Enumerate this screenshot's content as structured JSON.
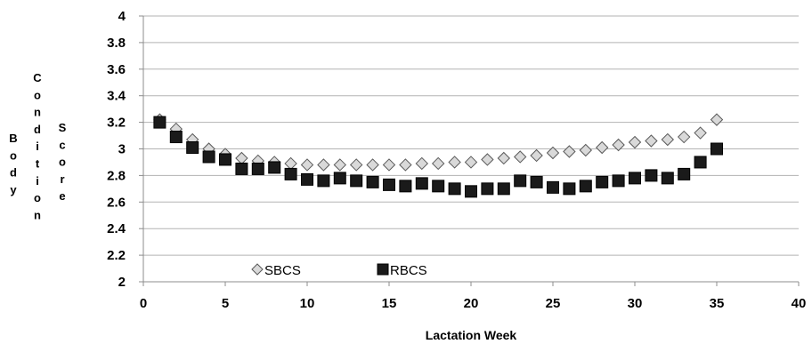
{
  "chart_data": {
    "type": "scatter",
    "xlabel": "Lactation Week",
    "ylabel_words": [
      "Body",
      "Condition",
      "Score"
    ],
    "xlim": [
      0,
      40
    ],
    "ylim": [
      2,
      4
    ],
    "xticks": [
      "0",
      "5",
      "10",
      "15",
      "20",
      "25",
      "30",
      "35",
      "40"
    ],
    "yticks": [
      "2",
      "2.2",
      "2.4",
      "2.6",
      "2.8",
      "3",
      "3.2",
      "3.4",
      "3.6",
      "3.8",
      "4"
    ],
    "grid": "horizontal",
    "legend_position": "bottom-left",
    "series": [
      {
        "name": "SBCS",
        "marker": "diamond",
        "color": "#d9d9d9",
        "x": [
          1,
          2,
          3,
          4,
          5,
          6,
          7,
          8,
          9,
          10,
          11,
          12,
          13,
          14,
          15,
          16,
          17,
          18,
          19,
          20,
          21,
          22,
          23,
          24,
          25,
          26,
          27,
          28,
          29,
          30,
          31,
          32,
          33,
          34,
          35
        ],
        "values": [
          3.22,
          3.15,
          3.07,
          3.0,
          2.96,
          2.93,
          2.91,
          2.9,
          2.89,
          2.88,
          2.88,
          2.88,
          2.88,
          2.88,
          2.88,
          2.88,
          2.89,
          2.89,
          2.9,
          2.9,
          2.92,
          2.93,
          2.94,
          2.95,
          2.97,
          2.98,
          2.99,
          3.01,
          3.03,
          3.05,
          3.06,
          3.07,
          3.09,
          3.12,
          3.22
        ]
      },
      {
        "name": "RBCS",
        "marker": "square",
        "color": "#1a1a1a",
        "x": [
          1,
          2,
          3,
          4,
          5,
          6,
          7,
          8,
          9,
          10,
          11,
          12,
          13,
          14,
          15,
          16,
          17,
          18,
          19,
          20,
          21,
          22,
          23,
          24,
          25,
          26,
          27,
          28,
          29,
          30,
          31,
          32,
          33,
          34,
          35
        ],
        "values": [
          3.2,
          3.09,
          3.01,
          2.94,
          2.92,
          2.85,
          2.85,
          2.86,
          2.81,
          2.77,
          2.76,
          2.78,
          2.76,
          2.75,
          2.73,
          2.72,
          2.74,
          2.72,
          2.7,
          2.68,
          2.7,
          2.7,
          2.76,
          2.75,
          2.71,
          2.7,
          2.72,
          2.75,
          2.76,
          2.78,
          2.8,
          2.78,
          2.81,
          2.9,
          3.0
        ]
      }
    ]
  }
}
